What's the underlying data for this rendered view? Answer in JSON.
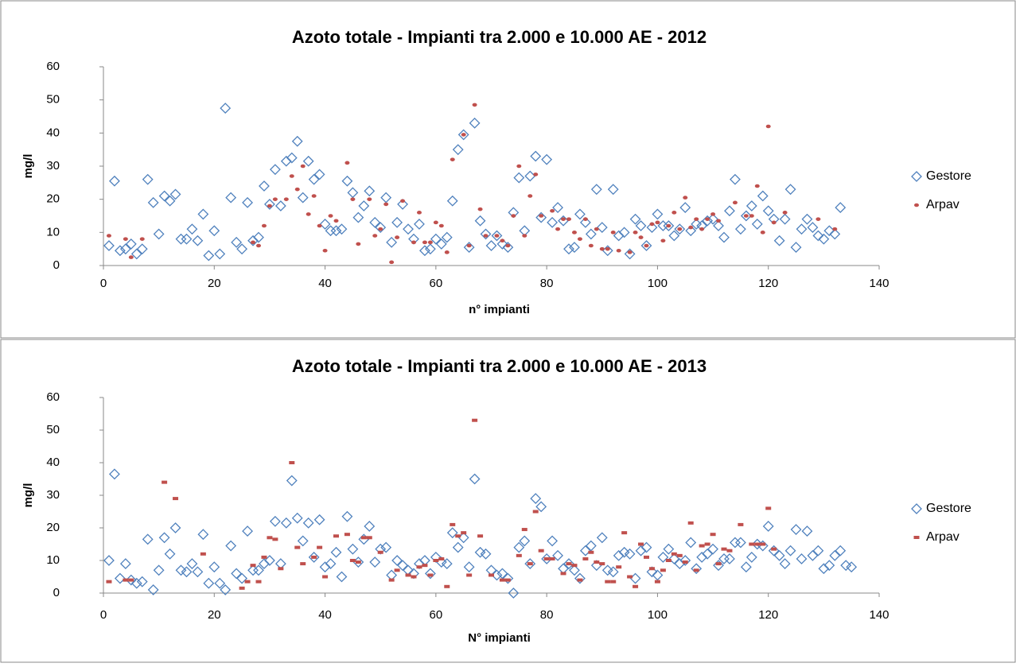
{
  "chart_data": [
    {
      "type": "scatter",
      "title": "Azoto totale - Impianti tra 2.000 e 10.000 AE - 2012",
      "x_label": "n° impianti",
      "y_label": "mg/l",
      "xlim": [
        0,
        140
      ],
      "xticks": [
        0,
        20,
        40,
        60,
        80,
        100,
        120,
        140
      ],
      "ylim": [
        0,
        60
      ],
      "yticks": [
        0,
        10,
        20,
        30,
        40,
        50,
        60
      ],
      "legend": "right",
      "series": [
        {
          "name": "Gestore",
          "color": "#4f81bd",
          "marker": "diamond",
          "x": [
            1,
            2,
            3,
            4,
            5,
            6,
            7,
            8,
            9,
            10,
            11,
            12,
            13,
            14,
            15,
            16,
            17,
            18,
            19,
            20,
            21,
            22,
            23,
            24,
            25,
            26,
            27,
            28,
            29,
            30,
            31,
            32,
            33,
            34,
            35,
            36,
            37,
            38,
            39,
            40,
            41,
            42,
            43,
            44,
            45,
            46,
            47,
            48,
            49,
            50,
            51,
            52,
            53,
            54,
            55,
            56,
            57,
            58,
            59,
            60,
            61,
            62,
            63,
            64,
            65,
            66,
            67,
            68,
            69,
            70,
            71,
            72,
            73,
            74,
            75,
            76,
            77,
            78,
            79,
            80,
            81,
            82,
            83,
            84,
            85,
            86,
            87,
            88,
            89,
            90,
            91,
            92,
            93,
            94,
            95,
            96,
            97,
            98,
            99,
            100,
            101,
            102,
            103,
            104,
            105,
            106,
            107,
            108,
            109,
            110,
            111,
            112,
            113,
            114,
            115,
            116,
            117,
            118,
            119,
            120,
            121,
            122,
            123,
            124,
            125,
            126,
            127,
            128,
            129,
            130,
            131,
            132,
            133
          ],
          "values": [
            6,
            25.5,
            4.5,
            5,
            6.5,
            3.5,
            5,
            26,
            19,
            9.5,
            21,
            19.5,
            21.5,
            8,
            8,
            11,
            7.5,
            15.5,
            3,
            10.5,
            3.5,
            47.5,
            20.5,
            7,
            5,
            19,
            7.5,
            8.5,
            24,
            18.5,
            29,
            18,
            31.5,
            32.5,
            37.5,
            20.5,
            31.5,
            26,
            27.5,
            12.5,
            10.5,
            10.5,
            11,
            25.5,
            22,
            14.5,
            18,
            22.5,
            13,
            11.5,
            20.5,
            7,
            13,
            18.5,
            11,
            8,
            12.5,
            4.5,
            5,
            8,
            6.5,
            8.5,
            19.5,
            35,
            39.5,
            5.5,
            43,
            13.5,
            9.5,
            6,
            9,
            6.5,
            5.5,
            16,
            26.5,
            10.5,
            27,
            33,
            14.5,
            32,
            13,
            17.5,
            13.5,
            5,
            5.5,
            15.5,
            13,
            9.5,
            23,
            11.5,
            4.5,
            23,
            9,
            10,
            3.5,
            14,
            12,
            6,
            11.5,
            15.5,
            12,
            12,
            9,
            11,
            17.5,
            10.5,
            12.5,
            12,
            13.5,
            14,
            12,
            8.5,
            16.5,
            26,
            11,
            15,
            18,
            12.5,
            21,
            16.5,
            14,
            7.5,
            14,
            23,
            5.5,
            11,
            14,
            11.5,
            9,
            8,
            10.5,
            9.5,
            17.5
          ]
        },
        {
          "name": "Arpav",
          "color": "#c0504d",
          "marker": "circle",
          "x": [
            1,
            4,
            5,
            7,
            27,
            28,
            29,
            30,
            31,
            33,
            34,
            35,
            36,
            37,
            38,
            39,
            40,
            41,
            42,
            44,
            45,
            46,
            48,
            49,
            50,
            51,
            52,
            53,
            54,
            56,
            57,
            58,
            59,
            60,
            61,
            62,
            63,
            65,
            66,
            67,
            68,
            69,
            71,
            72,
            73,
            74,
            75,
            76,
            77,
            78,
            79,
            81,
            82,
            83,
            84,
            85,
            86,
            87,
            88,
            89,
            90,
            91,
            92,
            93,
            95,
            96,
            97,
            98,
            99,
            100,
            101,
            102,
            103,
            104,
            105,
            106,
            107,
            108,
            109,
            110,
            111,
            114,
            116,
            117,
            118,
            119,
            120,
            121,
            123,
            129,
            132
          ],
          "values": [
            9,
            8,
            2.5,
            8,
            7,
            6,
            12,
            18,
            20,
            20,
            27,
            23,
            30,
            15.5,
            21,
            12,
            4.5,
            15,
            13.5,
            31,
            20,
            6.5,
            20,
            9,
            11,
            18.5,
            1,
            8.5,
            19.5,
            7,
            16,
            7,
            7,
            13,
            12,
            4,
            32,
            39.5,
            6,
            48.5,
            17,
            9,
            9,
            7.5,
            6,
            15,
            30,
            9,
            21,
            27.5,
            15,
            16.5,
            11,
            14,
            14,
            10,
            8,
            14,
            6,
            11,
            5,
            5,
            10,
            4.5,
            4,
            10,
            8.5,
            6,
            12.5,
            13,
            7.5,
            12,
            16,
            11,
            20.5,
            11.5,
            14,
            11,
            14,
            15.5,
            13.5,
            19,
            15,
            15,
            24,
            10,
            42,
            13,
            16,
            14,
            11
          ]
        }
      ]
    },
    {
      "type": "scatter",
      "title": "Azoto totale - Impianti tra 2.000 e 10.000 AE - 2013",
      "x_label": "N° impianti",
      "y_label": "mg/l",
      "xlim": [
        0,
        140
      ],
      "xticks": [
        0,
        20,
        40,
        60,
        80,
        100,
        120,
        140
      ],
      "ylim": [
        0,
        60
      ],
      "yticks": [
        0,
        10,
        20,
        30,
        40,
        50,
        60
      ],
      "legend": "right",
      "series": [
        {
          "name": "Gestore",
          "color": "#4f81bd",
          "marker": "diamond",
          "x": [
            1,
            2,
            3,
            4,
            5,
            6,
            7,
            8,
            9,
            10,
            11,
            12,
            13,
            14,
            15,
            16,
            17,
            18,
            19,
            20,
            21,
            22,
            23,
            24,
            25,
            26,
            27,
            28,
            29,
            30,
            31,
            32,
            33,
            34,
            35,
            36,
            37,
            38,
            39,
            40,
            41,
            42,
            43,
            44,
            45,
            46,
            47,
            48,
            49,
            50,
            51,
            52,
            53,
            54,
            55,
            56,
            57,
            58,
            59,
            60,
            61,
            62,
            63,
            64,
            65,
            66,
            67,
            68,
            69,
            70,
            71,
            72,
            73,
            74,
            75,
            76,
            77,
            78,
            79,
            80,
            81,
            82,
            83,
            84,
            85,
            86,
            87,
            88,
            89,
            90,
            91,
            92,
            93,
            94,
            95,
            96,
            97,
            98,
            99,
            100,
            101,
            102,
            103,
            104,
            105,
            106,
            107,
            108,
            109,
            110,
            111,
            112,
            113,
            114,
            115,
            116,
            117,
            118,
            119,
            120,
            121,
            122,
            123,
            124,
            125,
            126,
            127,
            128,
            129,
            130,
            131,
            132,
            133,
            134,
            135
          ],
          "values": [
            10,
            36.5,
            4.5,
            9,
            4,
            3,
            3.5,
            16.5,
            1,
            7,
            17,
            12,
            20,
            7,
            6.5,
            9,
            6.5,
            18,
            3,
            8,
            3,
            1,
            14.5,
            6,
            4.5,
            19,
            7,
            7,
            9,
            10,
            22,
            9,
            21.5,
            34.5,
            23,
            16,
            21.5,
            11,
            22.5,
            8,
            9,
            12.5,
            5,
            23.5,
            13.5,
            9.5,
            16.5,
            20.5,
            9.5,
            13.5,
            14,
            5.5,
            10,
            8.5,
            7,
            6,
            9,
            10,
            6,
            11,
            9.5,
            9,
            18.5,
            14,
            17,
            8,
            35,
            12.5,
            12,
            7,
            5.5,
            6,
            4.5,
            0,
            14,
            16,
            9,
            29,
            26.5,
            10.5,
            16,
            11.5,
            7.5,
            9,
            7,
            4.5,
            13,
            14.5,
            8.5,
            17,
            7,
            6.5,
            11.5,
            12.5,
            12,
            4.5,
            13,
            14,
            6.5,
            5.5,
            11,
            13.5,
            10.5,
            9,
            10,
            15.5,
            7.5,
            11,
            12,
            13.5,
            8.5,
            10.5,
            10.5,
            15.5,
            15.5,
            8,
            11,
            15,
            14.5,
            20.5,
            13,
            11.5,
            9,
            13,
            19.5,
            10.5,
            19,
            11.5,
            13,
            7.5,
            8.5,
            11.5,
            13,
            8.5,
            8
          ]
        },
        {
          "name": "Arpav",
          "color": "#c0504d",
          "marker": "square",
          "x": [
            1,
            4,
            5,
            11,
            13,
            18,
            25,
            26,
            27,
            28,
            29,
            30,
            31,
            32,
            34,
            35,
            36,
            38,
            39,
            40,
            42,
            44,
            45,
            46,
            47,
            48,
            50,
            52,
            53,
            55,
            56,
            57,
            58,
            59,
            60,
            61,
            62,
            63,
            64,
            65,
            66,
            67,
            68,
            70,
            72,
            73,
            75,
            76,
            77,
            78,
            79,
            80,
            81,
            83,
            84,
            85,
            86,
            87,
            88,
            89,
            90,
            91,
            92,
            93,
            94,
            95,
            96,
            97,
            98,
            99,
            100,
            101,
            102,
            103,
            104,
            105,
            106,
            107,
            108,
            109,
            110,
            111,
            112,
            113,
            115,
            117,
            118,
            119,
            120,
            121
          ],
          "values": [
            3.5,
            4,
            4,
            34,
            29,
            12,
            1.5,
            3.5,
            8.5,
            3.5,
            11,
            17,
            16.5,
            7.5,
            40,
            14,
            9,
            11,
            14,
            5,
            17.5,
            18,
            10,
            9.5,
            17,
            17,
            12.5,
            4,
            7,
            5.5,
            5,
            8,
            8.5,
            5.5,
            10,
            10.5,
            2,
            21,
            17.5,
            18.5,
            5.5,
            53,
            17.5,
            5.5,
            4,
            4,
            11.5,
            19.5,
            9,
            25,
            13,
            10.5,
            10.5,
            6,
            9,
            8.5,
            4,
            10.5,
            12.5,
            9.5,
            9,
            3.5,
            3.5,
            8,
            18.5,
            5,
            2,
            15,
            11,
            7.5,
            3.5,
            7,
            10,
            12,
            11.5,
            9.5,
            21.5,
            7,
            14.5,
            15,
            18,
            9,
            13.5,
            13,
            21,
            15,
            15,
            15,
            26,
            13.5
          ]
        }
      ]
    }
  ]
}
